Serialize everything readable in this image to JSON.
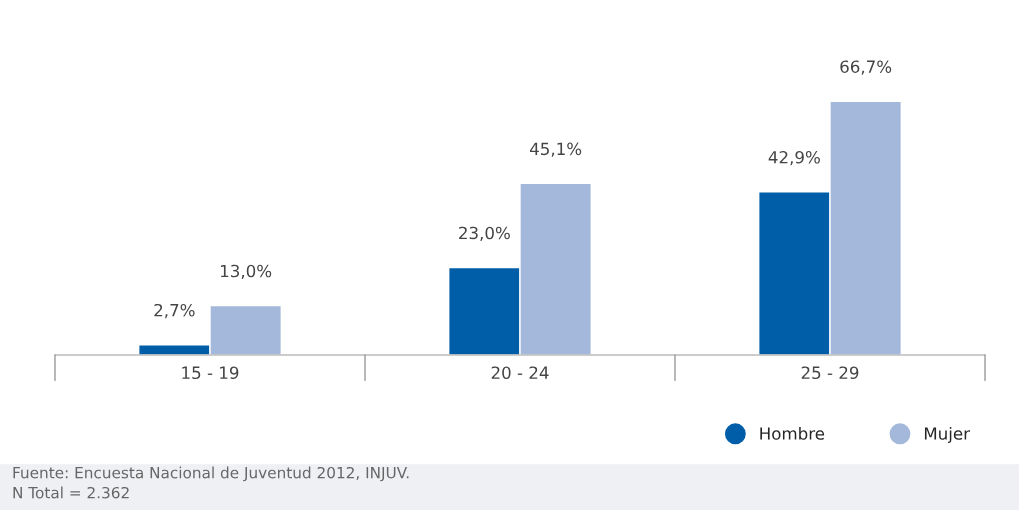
{
  "chart_data": {
    "type": "bar",
    "categories": [
      "15 - 19",
      "20 - 24",
      "25 - 29"
    ],
    "series": [
      {
        "name": "Hombre",
        "color": "#005ea8",
        "values": [
          2.7,
          23.0,
          42.9
        ],
        "value_labels": [
          "2,7%",
          "23,0%",
          "42,9%"
        ]
      },
      {
        "name": "Mujer",
        "color": "#a3b8da",
        "values": [
          13.0,
          45.1,
          66.7
        ],
        "value_labels": [
          "13,0%",
          "45,1%",
          "66,7%"
        ]
      }
    ],
    "legend": "bottom right",
    "grid": false,
    "annotations": [
      "Fuente: Encuesta Nacional de Juventud 2012, INJUV.",
      "N Total = 2.362"
    ]
  }
}
